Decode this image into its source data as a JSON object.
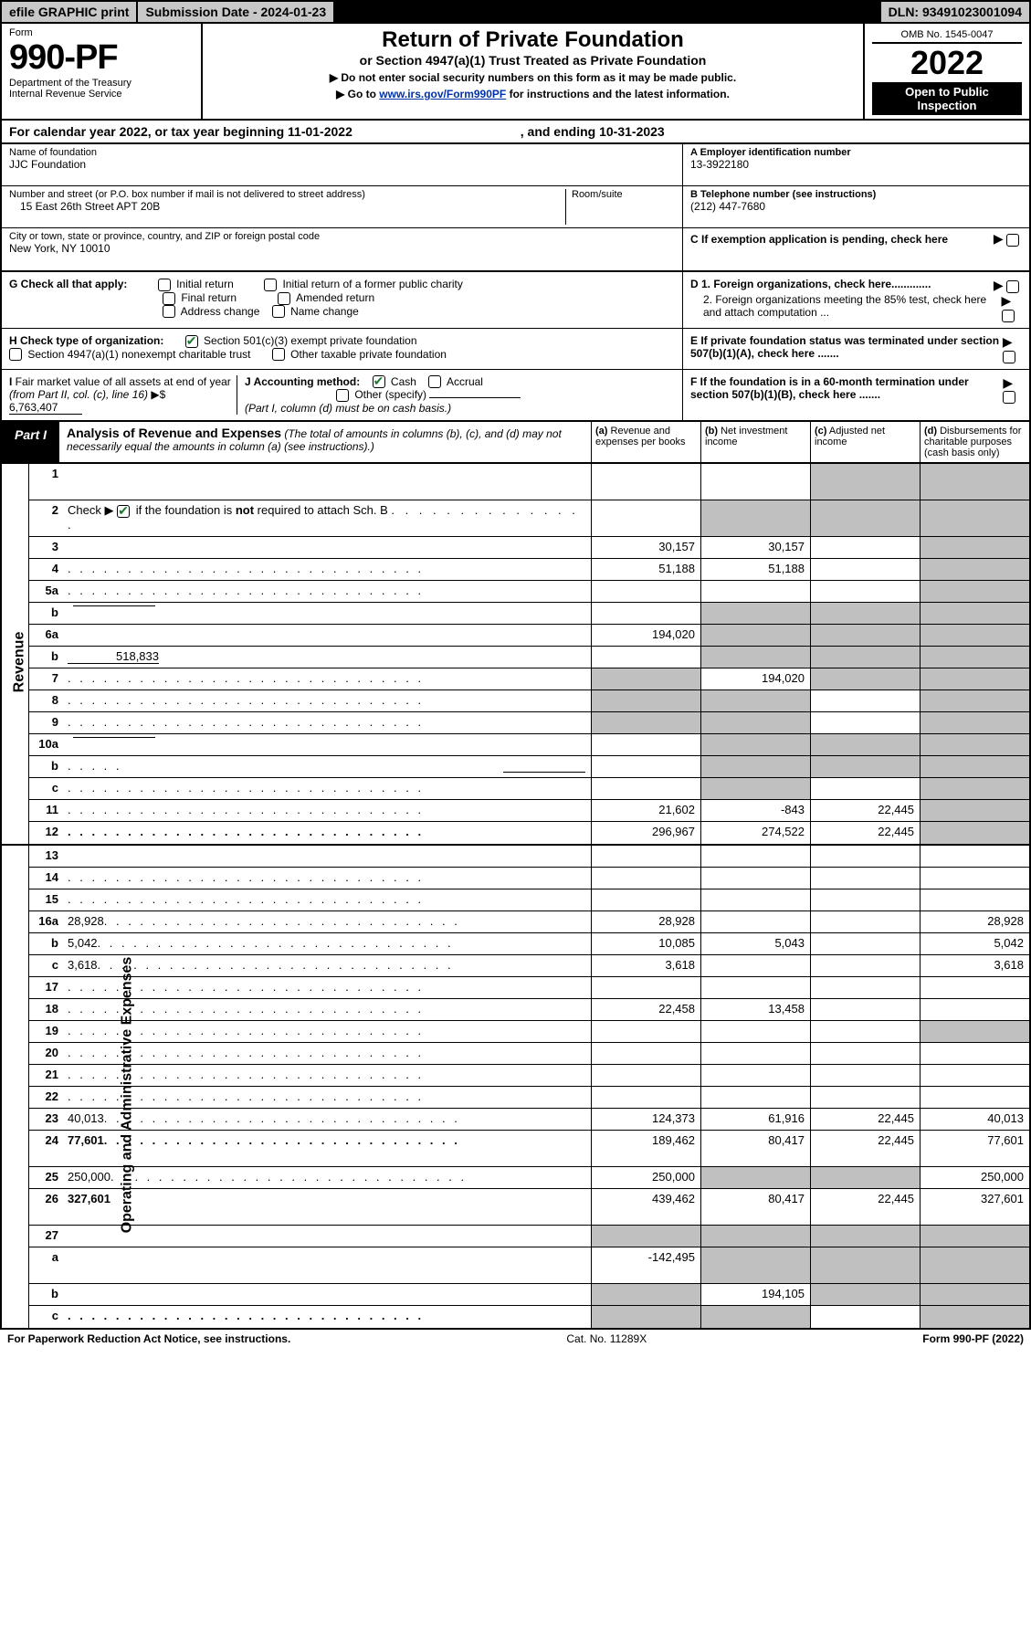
{
  "top": {
    "efile_label": "efile GRAPHIC print",
    "submission_label": "Submission Date - 2024-01-23",
    "dln_label": "DLN: 93491023001094"
  },
  "header": {
    "form_word": "Form",
    "form_number": "990-PF",
    "dept": "Department of the Treasury",
    "irs": "Internal Revenue Service",
    "title": "Return of Private Foundation",
    "subtitle": "or Section 4947(a)(1) Trust Treated as Private Foundation",
    "note1_prefix": "▶ Do not enter social security numbers on this form as it may be made public.",
    "note2_prefix": "▶ Go to ",
    "note2_link": "www.irs.gov/Form990PF",
    "note2_suffix": " for instructions and the latest information.",
    "omb": "OMB No. 1545-0047",
    "year": "2022",
    "open": "Open to Public Inspection"
  },
  "calrow": {
    "prefix": "For calendar year 2022, or tax year beginning ",
    "begin": "11-01-2022",
    "mid": " , and ending ",
    "end": "10-31-2023"
  },
  "info": {
    "name_label": "Name of foundation",
    "name": "JJC Foundation",
    "addr_label": "Number and street (or P.O. box number if mail is not delivered to street address)",
    "addr": "15 East 26th Street APT 20B",
    "room_label": "Room/suite",
    "city_label": "City or town, state or province, country, and ZIP or foreign postal code",
    "city": "New York, NY  10010",
    "ein_label": "A Employer identification number",
    "ein": "13-3922180",
    "phone_label": "B Telephone number (see instructions)",
    "phone": "(212) 447-7680",
    "c_label": "C If exemption application is pending, check here",
    "d1": "D 1. Foreign organizations, check here.............",
    "d2": "2. Foreign organizations meeting the 85% test, check here and attach computation ...",
    "e": "E If private foundation status was terminated under section 507(b)(1)(A), check here .......",
    "f": "F If the foundation is in a 60-month termination under section 507(b)(1)(B), check here .......",
    "g_label": "G Check all that apply:",
    "g_opts": [
      "Initial return",
      "Final return",
      "Address change",
      "Initial return of a former public charity",
      "Amended return",
      "Name change"
    ],
    "h_label": "H Check type of organization:",
    "h1": "Section 501(c)(3) exempt private foundation",
    "h2": "Section 4947(a)(1) nonexempt charitable trust",
    "h3": "Other taxable private foundation",
    "i_label": "I Fair market value of all assets at end of year (from Part II, col. (c), line 16) ▶$ ",
    "i_val": "6,763,407",
    "j_label": "J Accounting method:",
    "j_cash": "Cash",
    "j_accrual": "Accrual",
    "j_other": "Other (specify)",
    "j_note": "(Part I, column (d) must be on cash basis.)"
  },
  "part1": {
    "label": "Part I",
    "title": "Analysis of Revenue and Expenses",
    "note": " (The total of amounts in columns (b), (c), and (d) may not necessarily equal the amounts in column (a) (see instructions).)",
    "col_a": "(a) Revenue and expenses per books",
    "col_b": "(b) Net investment income",
    "col_c": "(c) Adjusted net income",
    "col_d": "(d) Disbursements for charitable purposes (cash basis only)"
  },
  "side": {
    "revenue": "Revenue",
    "expenses": "Operating and Administrative Expenses"
  },
  "rows": [
    {
      "n": "1",
      "d": "",
      "a": "",
      "b": "",
      "c": "",
      "tall": true,
      "gb": false,
      "gc": true,
      "gd": true
    },
    {
      "n": "2",
      "d": "",
      "a": "",
      "b": "",
      "c": "",
      "tall": true,
      "gb": true,
      "gc": true,
      "gd": true,
      "dots": true,
      "checked": true,
      "bolditalic": [
        "not"
      ]
    },
    {
      "n": "3",
      "d": "",
      "a": "30,157",
      "b": "30,157",
      "c": "",
      "gd": true
    },
    {
      "n": "4",
      "d": "",
      "a": "51,188",
      "b": "51,188",
      "c": "",
      "gd": true,
      "dots": true
    },
    {
      "n": "5a",
      "d": "",
      "a": "",
      "b": "",
      "c": "",
      "gd": true,
      "dots": true
    },
    {
      "n": "b",
      "d": "",
      "a": "",
      "b": "",
      "c": "",
      "gb": true,
      "gc": true,
      "gd": true,
      "inline_blank": true
    },
    {
      "n": "6a",
      "d": "",
      "a": "194,020",
      "b": "",
      "c": "",
      "gb": true,
      "gc": true,
      "gd": true
    },
    {
      "n": "b",
      "d": "",
      "a": "",
      "b": "",
      "c": "",
      "gb": true,
      "gc": true,
      "gd": true,
      "inline_val": "518,833"
    },
    {
      "n": "7",
      "d": "",
      "a": "",
      "b": "194,020",
      "c": "",
      "ga": true,
      "gc": true,
      "gd": true,
      "dots": true
    },
    {
      "n": "8",
      "d": "",
      "a": "",
      "b": "",
      "c": "",
      "ga": true,
      "gb": true,
      "gd": true,
      "dots": true
    },
    {
      "n": "9",
      "d": "",
      "a": "",
      "b": "",
      "c": "",
      "ga": true,
      "gb": true,
      "gd": true,
      "dots": true
    },
    {
      "n": "10a",
      "d": "",
      "a": "",
      "b": "",
      "c": "",
      "gb": true,
      "gc": true,
      "gd": true,
      "inline_blank": true
    },
    {
      "n": "b",
      "d": "",
      "a": "",
      "b": "",
      "c": "",
      "gb": true,
      "gc": true,
      "gd": true,
      "inline_blank": true,
      "dots": true
    },
    {
      "n": "c",
      "d": "",
      "a": "",
      "b": "",
      "c": "",
      "gb": true,
      "gd": true,
      "dots": true
    },
    {
      "n": "11",
      "d": "",
      "a": "21,602",
      "b": "-843",
      "c": "22,445",
      "gd": true,
      "dots": true
    },
    {
      "n": "12",
      "d": "",
      "a": "296,967",
      "b": "274,522",
      "c": "22,445",
      "gd": true,
      "bold": true,
      "dots": true
    }
  ],
  "exp_rows": [
    {
      "n": "13",
      "d": "",
      "a": "",
      "b": "",
      "c": ""
    },
    {
      "n": "14",
      "d": "",
      "a": "",
      "b": "",
      "c": "",
      "dots": true
    },
    {
      "n": "15",
      "d": "",
      "a": "",
      "b": "",
      "c": "",
      "dots": true
    },
    {
      "n": "16a",
      "d": "28,928",
      "a": "28,928",
      "b": "",
      "c": "",
      "dots": true
    },
    {
      "n": "b",
      "d": "5,042",
      "a": "10,085",
      "b": "5,043",
      "c": "",
      "dots": true
    },
    {
      "n": "c",
      "d": "3,618",
      "a": "3,618",
      "b": "",
      "c": "",
      "dots": true
    },
    {
      "n": "17",
      "d": "",
      "a": "",
      "b": "",
      "c": "",
      "dots": true
    },
    {
      "n": "18",
      "d": "",
      "a": "22,458",
      "b": "13,458",
      "c": "",
      "dots": true
    },
    {
      "n": "19",
      "d": "",
      "a": "",
      "b": "",
      "c": "",
      "gd": true,
      "dots": true
    },
    {
      "n": "20",
      "d": "",
      "a": "",
      "b": "",
      "c": "",
      "dots": true
    },
    {
      "n": "21",
      "d": "",
      "a": "",
      "b": "",
      "c": "",
      "dots": true
    },
    {
      "n": "22",
      "d": "",
      "a": "",
      "b": "",
      "c": "",
      "dots": true
    },
    {
      "n": "23",
      "d": "40,013",
      "a": "124,373",
      "b": "61,916",
      "c": "22,445",
      "dots": true
    },
    {
      "n": "24",
      "d": "77,601",
      "a": "189,462",
      "b": "80,417",
      "c": "22,445",
      "bold": true,
      "tall": true,
      "dots": true
    },
    {
      "n": "25",
      "d": "250,000",
      "a": "250,000",
      "b": "",
      "c": "",
      "gb": true,
      "gc": true,
      "dots": true
    },
    {
      "n": "26",
      "d": "327,601",
      "a": "439,462",
      "b": "80,417",
      "c": "22,445",
      "bold": true,
      "tall": true
    },
    {
      "n": "27",
      "d": "",
      "a": "",
      "b": "",
      "c": "",
      "ga": true,
      "gb": true,
      "gc": true,
      "gd": true
    },
    {
      "n": "a",
      "d": "",
      "a": "-142,495",
      "b": "",
      "c": "",
      "gb": true,
      "gc": true,
      "gd": true,
      "bold": true,
      "tall": true
    },
    {
      "n": "b",
      "d": "",
      "a": "",
      "b": "194,105",
      "c": "",
      "ga": true,
      "gc": true,
      "gd": true,
      "bold": true
    },
    {
      "n": "c",
      "d": "",
      "a": "",
      "b": "",
      "c": "",
      "ga": true,
      "gb": true,
      "gd": true,
      "bold": true,
      "dots": true
    }
  ],
  "footer": {
    "left": "For Paperwork Reduction Act Notice, see instructions.",
    "mid": "Cat. No. 11289X",
    "right": "Form 990-PF (2022)"
  },
  "colors": {
    "grey": "#c0c0c0",
    "link": "#0033aa",
    "check": "#1a7a2e"
  }
}
